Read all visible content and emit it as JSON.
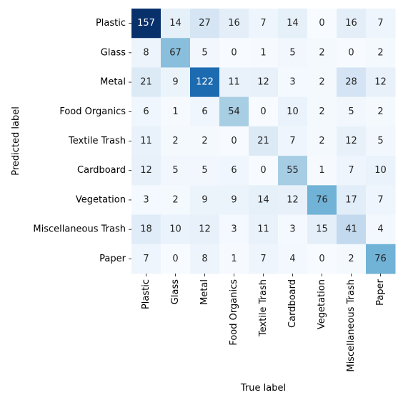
{
  "chart_data": {
    "type": "heatmap",
    "title": "",
    "xlabel": "True label",
    "ylabel": "Predicted label",
    "x_categories": [
      "Plastic",
      "Glass",
      "Metal",
      "Food Organics",
      "Textile Trash",
      "Cardboard",
      "Vegetation",
      "Miscellaneous Trash",
      "Paper"
    ],
    "y_categories": [
      "Plastic",
      "Glass",
      "Metal",
      "Food Organics",
      "Textile Trash",
      "Cardboard",
      "Vegetation",
      "Miscellaneous Trash",
      "Paper"
    ],
    "values": [
      [
        157,
        14,
        27,
        16,
        7,
        14,
        0,
        16,
        7
      ],
      [
        8,
        67,
        5,
        0,
        1,
        5,
        2,
        0,
        2
      ],
      [
        21,
        9,
        122,
        11,
        12,
        3,
        2,
        28,
        12
      ],
      [
        6,
        1,
        6,
        54,
        0,
        10,
        2,
        5,
        2
      ],
      [
        11,
        2,
        2,
        0,
        21,
        7,
        2,
        12,
        5
      ],
      [
        12,
        5,
        5,
        6,
        0,
        55,
        1,
        7,
        10
      ],
      [
        3,
        2,
        9,
        9,
        14,
        12,
        76,
        17,
        7
      ],
      [
        18,
        10,
        12,
        3,
        11,
        3,
        15,
        41,
        4
      ],
      [
        7,
        0,
        8,
        1,
        7,
        4,
        0,
        2,
        76
      ]
    ],
    "colormap": "Blues",
    "color_range": [
      0,
      157
    ],
    "colorbar": false,
    "grid": false
  }
}
